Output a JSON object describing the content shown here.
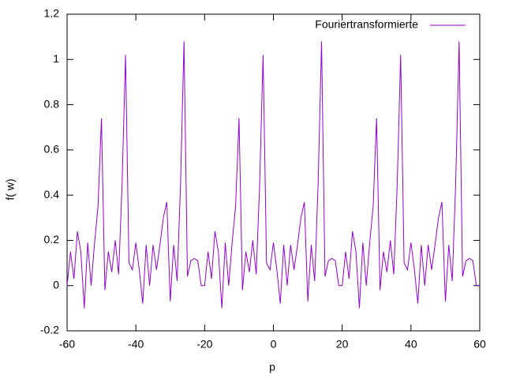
{
  "chart_data": {
    "type": "line",
    "xlabel": "p",
    "ylabel": "f( w)",
    "x": [
      -60,
      -59,
      -58,
      -57,
      -56,
      -55,
      -54,
      -53,
      -52,
      -51,
      -50,
      -49,
      -48,
      -47,
      -46,
      -45,
      -44,
      -43,
      -42,
      -41,
      -40,
      -39,
      -38,
      -37,
      -36,
      -35,
      -34,
      -33,
      -32,
      -31,
      -30,
      -29,
      -28,
      -27,
      -26,
      -25,
      -24,
      -23,
      -22,
      -21,
      -20,
      -19,
      -18,
      -17,
      -16,
      -15,
      -14,
      -13,
      -12,
      -11,
      -10,
      -9,
      -8,
      -7,
      -6,
      -5,
      -4,
      -3,
      -2,
      -1,
      0,
      1,
      2,
      3,
      4,
      5,
      6,
      7,
      8,
      9,
      10,
      11,
      12,
      13,
      14,
      15,
      16,
      17,
      18,
      19,
      20,
      21,
      22,
      23,
      24,
      25,
      26,
      27,
      28,
      29,
      30,
      31,
      32,
      33,
      34,
      35,
      36,
      37,
      38,
      39,
      40,
      41,
      42,
      43,
      44,
      45,
      46,
      47,
      48,
      49,
      50,
      51,
      52,
      53,
      54,
      55,
      56,
      57,
      58,
      59,
      60
    ],
    "series": [
      {
        "name": "Fouriertransformierte",
        "color": "#9400d3",
        "values": [
          0.0,
          0.15,
          0.03,
          0.24,
          0.15,
          -0.1,
          0.19,
          0.0,
          0.19,
          0.35,
          0.74,
          -0.02,
          0.15,
          0.06,
          0.2,
          0.05,
          0.45,
          1.02,
          0.1,
          0.07,
          0.19,
          0.07,
          -0.08,
          0.18,
          0.0,
          0.18,
          0.07,
          0.18,
          0.3,
          0.37,
          -0.07,
          0.18,
          0.02,
          0.45,
          1.08,
          0.04,
          0.11,
          0.12,
          0.11,
          0.0,
          0.0,
          0.15,
          0.03,
          0.24,
          0.15,
          -0.1,
          0.19,
          0.0,
          0.19,
          0.35,
          0.74,
          -0.02,
          0.15,
          0.06,
          0.2,
          0.05,
          0.45,
          1.02,
          0.1,
          0.07,
          0.19,
          0.07,
          -0.08,
          0.18,
          0.0,
          0.18,
          0.07,
          0.18,
          0.3,
          0.37,
          -0.07,
          0.18,
          0.02,
          0.45,
          1.08,
          0.04,
          0.11,
          0.12,
          0.11,
          0.0,
          0.0,
          0.15,
          0.03,
          0.24,
          0.15,
          -0.1,
          0.19,
          0.0,
          0.19,
          0.35,
          0.74,
          -0.02,
          0.15,
          0.06,
          0.2,
          0.05,
          0.45,
          1.02,
          0.1,
          0.07,
          0.19,
          0.07,
          -0.08,
          0.18,
          0.0,
          0.18,
          0.07,
          0.18,
          0.3,
          0.37,
          -0.07,
          0.18,
          0.02,
          0.45,
          1.08,
          0.04,
          0.11,
          0.12,
          0.11,
          0.0,
          0.0
        ]
      }
    ],
    "xlim": [
      -60,
      60
    ],
    "xticks": [
      -60,
      -40,
      -20,
      0,
      20,
      40,
      60
    ],
    "ylim": [
      -0.2,
      1.2
    ],
    "yticks": [
      -0.2,
      0,
      0.2,
      0.4,
      0.6,
      0.8,
      1,
      1.2
    ],
    "legend": "upper right"
  }
}
